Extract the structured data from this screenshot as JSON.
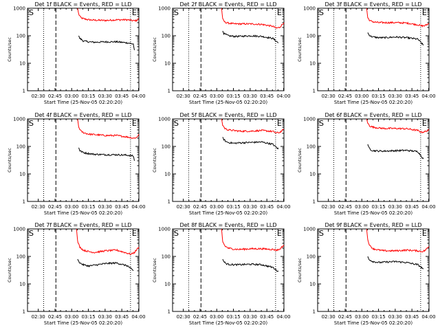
{
  "chart_data": [
    {
      "type": "line",
      "title": "Det 1f BLACK = Events, RED = LLD",
      "xlabel": "Start Time (25-Nov-05 02:20:20)",
      "ylabel": "Counts/sec",
      "xticks": [
        "02:30",
        "02:45",
        "03:00",
        "03:15",
        "03:30",
        "03:45",
        "04:00"
      ],
      "yticks": [
        "1",
        "10",
        "100",
        "1000"
      ],
      "ylim": [
        1,
        1000
      ],
      "yscale": "log",
      "start_marker": "S",
      "end_marker": "E",
      "series": [
        {
          "name": "LLD",
          "color": "#ff0000",
          "x": [
            45.0,
            46,
            48,
            50,
            55,
            60,
            70,
            80,
            90,
            95,
            98,
            100
          ],
          "y": [
            1000,
            600,
            450,
            420,
            380,
            370,
            360,
            380,
            380,
            350,
            360,
            420
          ]
        },
        {
          "name": "Events",
          "color": "#000000",
          "x": [
            46.0,
            47,
            50,
            55,
            60,
            70,
            80,
            90,
            95,
            96
          ],
          "y": [
            100,
            80,
            65,
            60,
            58,
            60,
            60,
            55,
            50,
            30
          ]
        }
      ]
    },
    {
      "type": "line",
      "title": "Det 2f BLACK = Events, RED = LLD",
      "xlabel": "Start Time (25-Nov-05 02:20:20)",
      "ylabel": "Counts/sec",
      "xticks": [
        "02:30",
        "02:45",
        "03:00",
        "03:15",
        "03:30",
        "03:45",
        "04:00"
      ],
      "yticks": [
        "1",
        "10",
        "100",
        "1000"
      ],
      "ylim": [
        1,
        1000
      ],
      "yscale": "log",
      "start_marker": "S",
      "end_marker": "E",
      "series": [
        {
          "name": "LLD",
          "color": "#ff0000",
          "x": [
            44.0,
            45,
            47,
            50,
            55,
            60,
            70,
            80,
            90,
            93,
            96,
            100
          ],
          "y": [
            1000,
            400,
            310,
            290,
            270,
            270,
            270,
            260,
            220,
            190,
            200,
            300
          ]
        },
        {
          "name": "Events",
          "color": "#000000",
          "x": [
            45.0,
            46,
            48,
            50,
            55,
            60,
            70,
            80,
            90,
            95
          ],
          "y": [
            150,
            120,
            110,
            100,
            95,
            95,
            100,
            95,
            80,
            55
          ]
        }
      ]
    },
    {
      "type": "line",
      "title": "Det 3f BLACK = Events, RED = LLD",
      "xlabel": "Start Time (25-Nov-05 02:20:20)",
      "ylabel": "Counts/sec",
      "xticks": [
        "02:30",
        "02:45",
        "03:00",
        "03:15",
        "03:30",
        "03:45",
        "04:00"
      ],
      "yticks": [
        "1",
        "10",
        "100",
        "1000"
      ],
      "ylim": [
        1,
        1000
      ],
      "yscale": "log",
      "start_marker": "S",
      "end_marker": "E",
      "series": [
        {
          "name": "LLD",
          "color": "#ff0000",
          "x": [
            44.0,
            45,
            47,
            50,
            55,
            60,
            70,
            80,
            90,
            93,
            96,
            100
          ],
          "y": [
            1000,
            450,
            350,
            320,
            300,
            300,
            300,
            290,
            250,
            230,
            230,
            280
          ]
        },
        {
          "name": "Events",
          "color": "#000000",
          "x": [
            45.0,
            46,
            48,
            50,
            55,
            60,
            70,
            80,
            90,
            95
          ],
          "y": [
            130,
            110,
            95,
            90,
            85,
            85,
            90,
            85,
            75,
            45
          ]
        }
      ]
    },
    {
      "type": "line",
      "title": "Det 4f BLACK = Events, RED = LLD",
      "xlabel": "Start Time (25-Nov-05 02:20:20)",
      "ylabel": "Counts/sec",
      "xticks": [
        "02:30",
        "02:45",
        "03:00",
        "03:15",
        "03:30",
        "03:45",
        "04:00"
      ],
      "yticks": [
        "1",
        "10",
        "100",
        "1000"
      ],
      "ylim": [
        1,
        1000
      ],
      "yscale": "log",
      "start_marker": "S",
      "end_marker": "E",
      "series": [
        {
          "name": "LLD",
          "color": "#ff0000",
          "x": [
            45.0,
            46,
            48,
            50,
            55,
            60,
            70,
            80,
            90,
            95,
            98,
            100
          ],
          "y": [
            1000,
            500,
            360,
            320,
            280,
            270,
            250,
            250,
            220,
            200,
            210,
            280
          ]
        },
        {
          "name": "Events",
          "color": "#000000",
          "x": [
            46.0,
            47,
            50,
            55,
            60,
            70,
            80,
            90,
            95,
            96
          ],
          "y": [
            90,
            70,
            60,
            55,
            52,
            50,
            50,
            48,
            45,
            30
          ]
        }
      ]
    },
    {
      "type": "line",
      "title": "Det 5f BLACK = Events, RED = LLD",
      "xlabel": "Start Time (25-Nov-05 02:20:20)",
      "ylabel": "Counts/sec",
      "xticks": [
        "02:30",
        "02:45",
        "03:00",
        "03:15",
        "03:30",
        "03:45",
        "04:00"
      ],
      "yticks": [
        "1",
        "10",
        "100",
        "1000"
      ],
      "ylim": [
        1,
        1000
      ],
      "yscale": "log",
      "start_marker": "S",
      "end_marker": "E",
      "series": [
        {
          "name": "LLD",
          "color": "#ff0000",
          "x": [
            44.0,
            45,
            47,
            50,
            55,
            60,
            70,
            80,
            90,
            93,
            96,
            100
          ],
          "y": [
            1000,
            600,
            450,
            400,
            380,
            360,
            360,
            380,
            350,
            310,
            320,
            420
          ]
        },
        {
          "name": "Events",
          "color": "#000000",
          "x": [
            45.0,
            46,
            48,
            50,
            55,
            60,
            70,
            80,
            90,
            95
          ],
          "y": [
            220,
            180,
            150,
            140,
            130,
            135,
            140,
            145,
            120,
            80
          ]
        }
      ]
    },
    {
      "type": "line",
      "title": "Det 6f BLACK = Events, RED = LLD",
      "xlabel": "Start Time (25-Nov-05 02:20:20)",
      "ylabel": "Counts/sec",
      "xticks": [
        "02:30",
        "02:45",
        "03:00",
        "03:15",
        "03:30",
        "03:45",
        "04:00"
      ],
      "yticks": [
        "1",
        "10",
        "100",
        "1000"
      ],
      "ylim": [
        1,
        1000
      ],
      "yscale": "log",
      "start_marker": "S",
      "end_marker": "E",
      "series": [
        {
          "name": "LLD",
          "color": "#ff0000",
          "x": [
            44.0,
            45,
            47,
            50,
            55,
            60,
            70,
            80,
            90,
            93,
            96,
            100
          ],
          "y": [
            1000,
            700,
            550,
            500,
            470,
            450,
            450,
            440,
            380,
            330,
            340,
            400
          ]
        },
        {
          "name": "Events",
          "color": "#000000",
          "x": [
            45.0,
            46,
            48,
            50,
            55,
            60,
            70,
            80,
            90,
            95
          ],
          "y": [
            120,
            90,
            75,
            70,
            68,
            68,
            70,
            72,
            65,
            35
          ]
        }
      ]
    },
    {
      "type": "line",
      "title": "Det 7f BLACK = Events, RED = LLD",
      "xlabel": "Start Time (25-Nov-05 02:20:20)",
      "ylabel": "Counts/sec",
      "xticks": [
        "02:30",
        "02:45",
        "03:00",
        "03:15",
        "03:30",
        "03:45",
        "04:00"
      ],
      "yticks": [
        "1",
        "10",
        "100",
        "1000"
      ],
      "ylim": [
        1,
        1000
      ],
      "yscale": "log",
      "start_marker": "S",
      "end_marker": "E",
      "series": [
        {
          "name": "LLD",
          "color": "#ff0000",
          "x": [
            44.0,
            45,
            47,
            50,
            55,
            60,
            70,
            80,
            90,
            93,
            96,
            100
          ],
          "y": [
            1000,
            350,
            220,
            170,
            150,
            140,
            160,
            170,
            130,
            120,
            140,
            220
          ]
        },
        {
          "name": "Events",
          "color": "#000000",
          "x": [
            45.0,
            46,
            48,
            50,
            55,
            60,
            70,
            80,
            90,
            95
          ],
          "y": [
            80,
            65,
            55,
            50,
            45,
            48,
            55,
            58,
            45,
            30
          ]
        }
      ]
    },
    {
      "type": "line",
      "title": "Det 8f BLACK = Events, RED = LLD",
      "xlabel": "Start Time (25-Nov-05 02:20:20)",
      "ylabel": "Counts/sec",
      "xticks": [
        "02:30",
        "02:45",
        "03:00",
        "03:15",
        "03:30",
        "03:45",
        "04:00"
      ],
      "yticks": [
        "1",
        "10",
        "100",
        "1000"
      ],
      "ylim": [
        1,
        1000
      ],
      "yscale": "log",
      "start_marker": "S",
      "end_marker": "E",
      "series": [
        {
          "name": "LLD",
          "color": "#ff0000",
          "x": [
            44.0,
            45,
            47,
            50,
            55,
            60,
            70,
            80,
            90,
            93,
            96,
            100
          ],
          "y": [
            1000,
            350,
            240,
            200,
            185,
            180,
            190,
            190,
            180,
            170,
            180,
            260
          ]
        },
        {
          "name": "Events",
          "color": "#000000",
          "x": [
            45.0,
            46,
            48,
            50,
            55,
            60,
            70,
            80,
            90,
            95
          ],
          "y": [
            80,
            65,
            55,
            52,
            50,
            50,
            52,
            50,
            40,
            28
          ]
        }
      ]
    },
    {
      "type": "line",
      "title": "Det 9f BLACK = Events, RED = LLD",
      "xlabel": "Start Time (25-Nov-05 02:20:20)",
      "ylabel": "Counts/sec",
      "xticks": [
        "02:30",
        "02:45",
        "03:00",
        "03:15",
        "03:30",
        "03:45",
        "04:00"
      ],
      "yticks": [
        "1",
        "10",
        "100",
        "1000"
      ],
      "ylim": [
        1,
        1000
      ],
      "yscale": "log",
      "start_marker": "S",
      "end_marker": "E",
      "series": [
        {
          "name": "LLD",
          "color": "#ff0000",
          "x": [
            44.0,
            45,
            47,
            50,
            55,
            60,
            70,
            80,
            90,
            93,
            96,
            100
          ],
          "y": [
            1000,
            400,
            240,
            190,
            170,
            160,
            160,
            170,
            160,
            150,
            160,
            230
          ]
        },
        {
          "name": "Events",
          "color": "#000000",
          "x": [
            45.0,
            46,
            48,
            50,
            55,
            60,
            70,
            80,
            90,
            95
          ],
          "y": [
            100,
            80,
            70,
            65,
            60,
            62,
            65,
            60,
            50,
            35
          ]
        }
      ]
    }
  ]
}
